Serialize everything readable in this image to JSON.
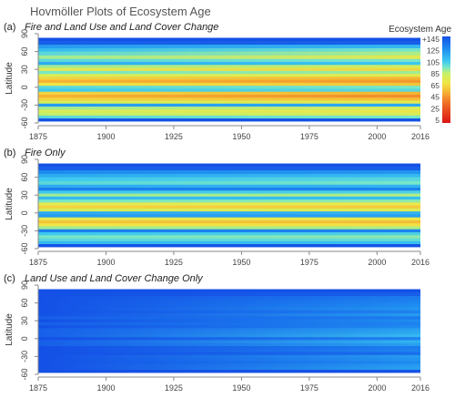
{
  "title": "Hovmöller Plots of Ecosystem Age",
  "chart_data": {
    "type": "heatmap",
    "x_range": [
      1875,
      2016
    ],
    "y_range": [
      -60,
      90
    ],
    "x_ticks": [
      1875,
      1900,
      1925,
      1950,
      1975,
      2000,
      2016
    ],
    "y_ticks": [
      -60,
      -30,
      0,
      30,
      60,
      90
    ],
    "ylabel": "Latitude",
    "colorbar": {
      "title": "Ecosystem Age",
      "ticks": [
        "+145",
        "125",
        "105",
        "85",
        "65",
        "45",
        "25",
        "5"
      ],
      "stops": [
        {
          "value": 145,
          "color": "#1450e6"
        },
        {
          "value": 125,
          "color": "#1e8cf0"
        },
        {
          "value": 105,
          "color": "#3cc8f0"
        },
        {
          "value": 95,
          "color": "#78e6c8"
        },
        {
          "value": 85,
          "color": "#c8f064"
        },
        {
          "value": 70,
          "color": "#f0e646"
        },
        {
          "value": 55,
          "color": "#f5b432"
        },
        {
          "value": 40,
          "color": "#f07828"
        },
        {
          "value": 20,
          "color": "#e63c1e"
        },
        {
          "value": 5,
          "color": "#dc1414"
        }
      ]
    },
    "panels": [
      {
        "label": "(a)",
        "title": "Fire and Land Use and Land Cover Change",
        "bands": [
          {
            "lat": 81,
            "age_start": 145,
            "age_end": 145
          },
          {
            "lat": 75,
            "age_start": 140,
            "age_end": 140
          },
          {
            "lat": 68,
            "age_start": 120,
            "age_end": 110
          },
          {
            "lat": 63,
            "age_start": 110,
            "age_end": 95
          },
          {
            "lat": 57,
            "age_start": 100,
            "age_end": 88
          },
          {
            "lat": 50,
            "age_start": 90,
            "age_end": 75
          },
          {
            "lat": 45,
            "age_start": 100,
            "age_end": 95
          },
          {
            "lat": 40,
            "age_start": 115,
            "age_end": 105
          },
          {
            "lat": 35,
            "age_start": 90,
            "age_end": 80
          },
          {
            "lat": 30,
            "age_start": 75,
            "age_end": 65
          },
          {
            "lat": 25,
            "age_start": 95,
            "age_end": 90
          },
          {
            "lat": 20,
            "age_start": 80,
            "age_end": 75
          },
          {
            "lat": 15,
            "age_start": 65,
            "age_end": 55
          },
          {
            "lat": 10,
            "age_start": 55,
            "age_end": 48
          },
          {
            "lat": 5,
            "age_start": 70,
            "age_end": 60
          },
          {
            "lat": 0,
            "age_start": 100,
            "age_end": 95
          },
          {
            "lat": -5,
            "age_start": 105,
            "age_end": 100
          },
          {
            "lat": -10,
            "age_start": 65,
            "age_end": 55
          },
          {
            "lat": -15,
            "age_start": 55,
            "age_end": 45
          },
          {
            "lat": -20,
            "age_start": 65,
            "age_end": 58
          },
          {
            "lat": -25,
            "age_start": 80,
            "age_end": 75
          },
          {
            "lat": -30,
            "age_start": 120,
            "age_end": 115
          },
          {
            "lat": -35,
            "age_start": 90,
            "age_end": 80
          },
          {
            "lat": -40,
            "age_start": 80,
            "age_end": 72
          },
          {
            "lat": -45,
            "age_start": 85,
            "age_end": 78
          },
          {
            "lat": -50,
            "age_start": 100,
            "age_end": 95
          },
          {
            "lat": -55,
            "age_start": 145,
            "age_end": 145
          }
        ]
      },
      {
        "label": "(b)",
        "title": "Fire Only",
        "bands": [
          {
            "lat": 81,
            "age_start": 145,
            "age_end": 145
          },
          {
            "lat": 75,
            "age_start": 140,
            "age_end": 140
          },
          {
            "lat": 68,
            "age_start": 125,
            "age_end": 122
          },
          {
            "lat": 63,
            "age_start": 115,
            "age_end": 110
          },
          {
            "lat": 57,
            "age_start": 105,
            "age_end": 100
          },
          {
            "lat": 50,
            "age_start": 100,
            "age_end": 95
          },
          {
            "lat": 45,
            "age_start": 115,
            "age_end": 112
          },
          {
            "lat": 40,
            "age_start": 130,
            "age_end": 128
          },
          {
            "lat": 35,
            "age_start": 105,
            "age_end": 102
          },
          {
            "lat": 30,
            "age_start": 90,
            "age_end": 88
          },
          {
            "lat": 25,
            "age_start": 110,
            "age_end": 108
          },
          {
            "lat": 20,
            "age_start": 95,
            "age_end": 92
          },
          {
            "lat": 15,
            "age_start": 75,
            "age_end": 72
          },
          {
            "lat": 10,
            "age_start": 65,
            "age_end": 62
          },
          {
            "lat": 5,
            "age_start": 80,
            "age_end": 78
          },
          {
            "lat": 0,
            "age_start": 115,
            "age_end": 112
          },
          {
            "lat": -5,
            "age_start": 120,
            "age_end": 118
          },
          {
            "lat": -10,
            "age_start": 75,
            "age_end": 72
          },
          {
            "lat": -15,
            "age_start": 60,
            "age_end": 58
          },
          {
            "lat": -20,
            "age_start": 70,
            "age_end": 68
          },
          {
            "lat": -25,
            "age_start": 90,
            "age_end": 88
          },
          {
            "lat": -30,
            "age_start": 130,
            "age_end": 128
          },
          {
            "lat": -35,
            "age_start": 105,
            "age_end": 102
          },
          {
            "lat": -40,
            "age_start": 95,
            "age_end": 92
          },
          {
            "lat": -45,
            "age_start": 100,
            "age_end": 98
          },
          {
            "lat": -50,
            "age_start": 110,
            "age_end": 108
          },
          {
            "lat": -55,
            "age_start": 145,
            "age_end": 145
          }
        ]
      },
      {
        "label": "(c)",
        "title": "Land Use and Land Cover Change Only",
        "bands": [
          {
            "lat": 81,
            "age_start": 145,
            "age_end": 145
          },
          {
            "lat": 75,
            "age_start": 145,
            "age_end": 140
          },
          {
            "lat": 68,
            "age_start": 145,
            "age_end": 130
          },
          {
            "lat": 63,
            "age_start": 145,
            "age_end": 128
          },
          {
            "lat": 57,
            "age_start": 145,
            "age_end": 125
          },
          {
            "lat": 50,
            "age_start": 145,
            "age_end": 122
          },
          {
            "lat": 45,
            "age_start": 145,
            "age_end": 128
          },
          {
            "lat": 40,
            "age_start": 145,
            "age_end": 120
          },
          {
            "lat": 35,
            "age_start": 140,
            "age_end": 130
          },
          {
            "lat": 30,
            "age_start": 145,
            "age_end": 125
          },
          {
            "lat": 25,
            "age_start": 140,
            "age_end": 128
          },
          {
            "lat": 20,
            "age_start": 145,
            "age_end": 125
          },
          {
            "lat": 15,
            "age_start": 140,
            "age_end": 118
          },
          {
            "lat": 10,
            "age_start": 140,
            "age_end": 115
          },
          {
            "lat": 5,
            "age_start": 140,
            "age_end": 110
          },
          {
            "lat": 0,
            "age_start": 145,
            "age_end": 128
          },
          {
            "lat": -5,
            "age_start": 140,
            "age_end": 112
          },
          {
            "lat": -10,
            "age_start": 140,
            "age_end": 118
          },
          {
            "lat": -15,
            "age_start": 145,
            "age_end": 130
          },
          {
            "lat": -20,
            "age_start": 145,
            "age_end": 128
          },
          {
            "lat": -25,
            "age_start": 145,
            "age_end": 135
          },
          {
            "lat": -30,
            "age_start": 145,
            "age_end": 120
          },
          {
            "lat": -35,
            "age_start": 145,
            "age_end": 122
          },
          {
            "lat": -40,
            "age_start": 145,
            "age_end": 125
          },
          {
            "lat": -45,
            "age_start": 145,
            "age_end": 120
          },
          {
            "lat": -50,
            "age_start": 145,
            "age_end": 118
          },
          {
            "lat": -55,
            "age_start": 145,
            "age_end": 145
          }
        ]
      }
    ]
  }
}
